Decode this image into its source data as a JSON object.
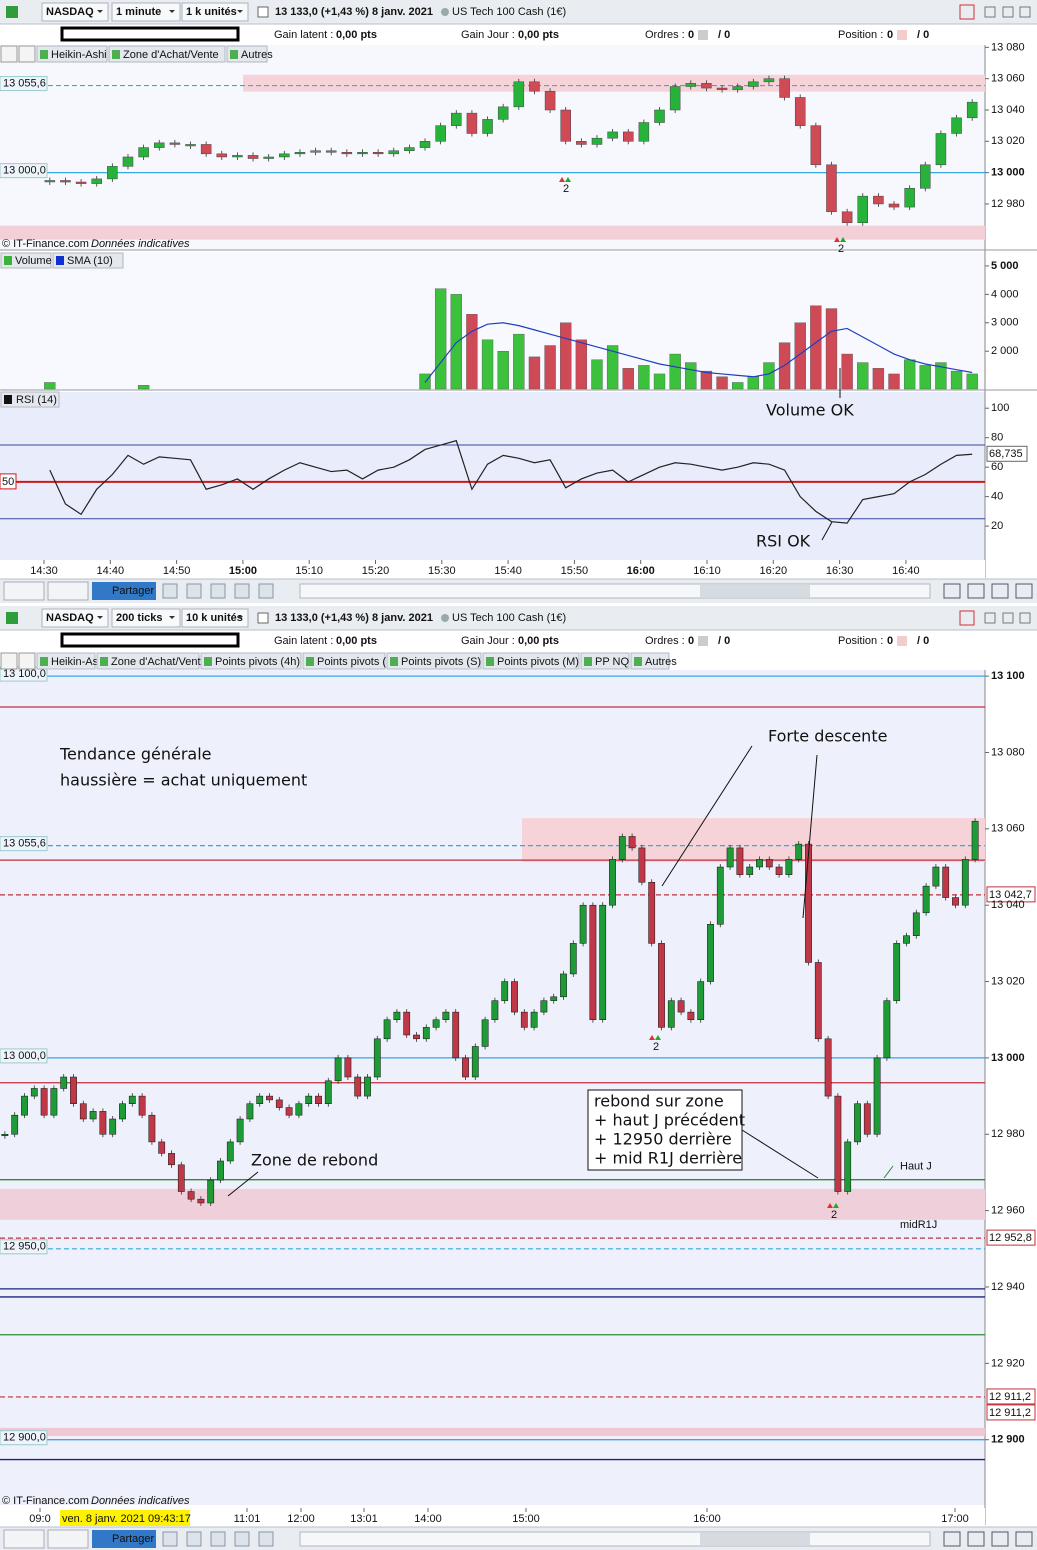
{
  "top_window": {
    "toolbar": {
      "instrument": "NASDAQ",
      "period": "1 minute",
      "units": "1 k unités",
      "quote": "13 133,0 (+1,43 %)",
      "date": "8 janv. 2021",
      "product": "US Tech 100 Cash (1€)"
    },
    "status": {
      "gain_latent": "Gain latent :",
      "gain_latent_value": "0,00 pts",
      "gain_jour": "Gain Jour :",
      "gain_jour_value": "0,00 pts",
      "ordres": "Ordres :",
      "ordres_value": "0",
      "ordres_value2": "/ 0",
      "position": "Position :",
      "position_value": "0",
      "position_value2": "/ 0"
    },
    "tabs": [
      "Heikin-Ashi",
      "Zone d'Achat/Vente",
      "Autres"
    ],
    "price": {
      "ylim": [
        12950.6,
        13081.5
      ],
      "yticks": [
        {
          "value": 13080,
          "label": "13 080"
        },
        {
          "value": 13060,
          "label": "13 060"
        },
        {
          "value": 13040,
          "label": "13 040"
        },
        {
          "value": 13020,
          "label": "13 020"
        },
        {
          "value": 13000,
          "label": "13 000",
          "bold": true
        },
        {
          "value": 12980,
          "label": "12 980"
        }
      ],
      "levels": [
        {
          "value": 13055.6,
          "color": "#3aa7e0",
          "dash": true,
          "label": "13 055,6"
        },
        {
          "value": 13000,
          "color": "#3aa7e0",
          "label": "13 000,0"
        }
      ],
      "zones": [
        {
          "from": 13051.7,
          "to": 13062.5,
          "color": "#f6d3d8"
        },
        {
          "from": 12957.2,
          "to": 12966.2,
          "color": "#f3d0d8"
        }
      ],
      "closes": [
        12995,
        12994,
        12993,
        12996,
        13004,
        13010,
        13016,
        13019,
        13018,
        13018,
        13012,
        13010,
        13011,
        13009,
        13010,
        13012,
        13013,
        13014,
        13013,
        13012,
        13013,
        13012,
        13014,
        13016,
        13020,
        13030,
        13038,
        13025,
        13034,
        13042,
        13058,
        13052,
        13040,
        13020,
        13018,
        13022,
        13026,
        13020,
        13032,
        13040,
        13055,
        13057,
        13054,
        13053,
        13055,
        13058,
        13060,
        13048,
        13030,
        13005,
        12975,
        12968,
        12985,
        12980,
        12978,
        12990,
        13005,
        13025,
        13035,
        13045
      ],
      "signals": [
        "2",
        "2"
      ],
      "copyright": "© IT-Finance.com",
      "copyright_note": "Données indicatives"
    },
    "volume": {
      "tabs": [
        "Volume",
        "SMA (10)"
      ],
      "ylim": [
        670,
        5490
      ],
      "yticks": [
        {
          "value": 5000,
          "label": "5 000",
          "bold": true
        },
        {
          "value": 4000,
          "label": "4 000"
        },
        {
          "value": 3000,
          "label": "3 000"
        },
        {
          "value": 2000,
          "label": "2 000"
        }
      ],
      "values": [
        900,
        null,
        null,
        null,
        null,
        null,
        800,
        null,
        null,
        null,
        null,
        null,
        null,
        null,
        null,
        null,
        null,
        null,
        null,
        null,
        null,
        null,
        null,
        null,
        1200,
        4200,
        4000,
        3300,
        2400,
        2000,
        2600,
        1800,
        2200,
        3000,
        2400,
        1700,
        2200,
        1400,
        1500,
        1200,
        1900,
        1600,
        1300,
        1100,
        900,
        1100,
        1600,
        2300,
        3000,
        3600,
        3500,
        1900,
        1600,
        1400,
        1200,
        1700,
        1500,
        1600,
        1300,
        1200
      ],
      "sma": [
        null,
        null,
        null,
        null,
        null,
        null,
        null,
        null,
        null,
        null,
        null,
        null,
        null,
        null,
        null,
        null,
        null,
        null,
        null,
        null,
        null,
        null,
        null,
        null,
        900,
        1600,
        2300,
        2700,
        2950,
        3000,
        2900,
        2750,
        2600,
        2450,
        2300,
        2150,
        2000,
        1850,
        1700,
        1550,
        1450,
        1350,
        1250,
        1200,
        1150,
        1100,
        1200,
        1500,
        1900,
        2300,
        2700,
        2800,
        2500,
        2200,
        1900,
        1700,
        1550,
        1450,
        1350,
        1250
      ],
      "sma_color": "#1f3fbf"
    },
    "rsi": {
      "tab": "RSI (14)",
      "ylim": [
        -3,
        111
      ],
      "yticks": [
        100,
        80,
        60,
        40,
        20
      ],
      "bands": [
        75,
        25
      ],
      "mid": {
        "value": 50,
        "label": "50"
      },
      "last": {
        "value": 68.735,
        "label": "68,735"
      },
      "values": [
        58,
        35,
        28,
        45,
        55,
        68,
        62,
        67,
        66,
        65,
        45,
        48,
        52,
        45,
        52,
        58,
        63,
        60,
        57,
        58,
        52,
        58,
        60,
        65,
        72,
        75,
        78,
        45,
        62,
        68,
        66,
        63,
        65,
        46,
        52,
        56,
        58,
        50,
        55,
        60,
        63,
        62,
        60,
        58,
        60,
        63,
        62,
        58,
        40,
        30,
        23,
        22,
        38,
        40,
        42,
        50,
        55,
        62,
        68,
        68.735
      ]
    },
    "annotations": [
      "Volume OK",
      "RSI OK"
    ],
    "time_axis": [
      {
        "label": "14:30"
      },
      {
        "label": "14:40"
      },
      {
        "label": "14:50"
      },
      {
        "label": "15:00",
        "bold": true
      },
      {
        "label": "15:10"
      },
      {
        "label": "15:20"
      },
      {
        "label": "15:30"
      },
      {
        "label": "15:40"
      },
      {
        "label": "15:50"
      },
      {
        "label": "16:00",
        "bold": true
      },
      {
        "label": "16:10"
      },
      {
        "label": "16:20"
      },
      {
        "label": "16:30"
      },
      {
        "label": "16:40"
      }
    ],
    "share": "Partager"
  },
  "bottom_window": {
    "toolbar": {
      "instrument": "NASDAQ",
      "period": "200 ticks",
      "units": "10 k unités",
      "quote": "13 133,0 (+1,43 %)",
      "date": "8 janv. 2021",
      "product": "US Tech 100 Cash (1€)"
    },
    "status": {
      "gain_latent": "Gain latent :",
      "gain_latent_value": "0,00 pts",
      "gain_jour": "Gain Jour :",
      "gain_jour_value": "0,00 pts",
      "ordres": "Ordres :",
      "ordres_value": "0",
      "ordres_value2": "/ 0",
      "position": "Position :",
      "position_value": "0",
      "position_value2": "/ 0"
    },
    "tabs": [
      "Heikin-Ashi",
      "Zone d'Achat/Vente",
      "Points pivots (4h)",
      "Points pivots (J)",
      "Points pivots (S)",
      "Points pivots (M)",
      "PP NQ",
      "Autres"
    ],
    "price": {
      "ylim": [
        12882.9,
        13101.6
      ],
      "yticks": [
        {
          "value": 13100,
          "label": "13 100",
          "bold": true
        },
        {
          "value": 13080,
          "label": "13 080"
        },
        {
          "value": 13060,
          "label": "13 060"
        },
        {
          "value": 13040,
          "label": "13 040"
        },
        {
          "value": 13020,
          "label": "13 020"
        },
        {
          "value": 13000,
          "label": "13 000",
          "bold": true
        },
        {
          "value": 12980,
          "label": "12 980"
        },
        {
          "value": 12960,
          "label": "12 960"
        },
        {
          "value": 12940,
          "label": "12 940"
        },
        {
          "value": 12920,
          "label": "12 920"
        },
        {
          "value": 12900,
          "label": "12 900",
          "bold": true
        }
      ],
      "levels": [
        {
          "value": 13100,
          "color": "#3aa7e0",
          "label": "13 100,0"
        },
        {
          "value": 13091.9,
          "color": "#c0303a"
        },
        {
          "value": 13055.6,
          "color": "#3aa7e0",
          "dash": true,
          "label": "13 055,6"
        },
        {
          "value": 13051.8,
          "color": "#c0303a"
        },
        {
          "value": 13042.7,
          "color": "#c0303a",
          "dash": true,
          "axis_labels": [
            "13 042,7"
          ]
        },
        {
          "value": 13000,
          "color": "#3aa7e0",
          "label": "13 000,0"
        },
        {
          "value": 12993.5,
          "color": "#c0303a"
        },
        {
          "value": 12968.1,
          "color": "#2e8b3a",
          "name": "Haut J"
        },
        {
          "value": 12952.8,
          "color": "#c0303a",
          "dash": true,
          "name": "midR1J",
          "axis_labels": [
            "12 952,8"
          ]
        },
        {
          "value": 12950,
          "color": "#3aa7e0",
          "dash": true,
          "label": "12 950,0"
        },
        {
          "value": 12939.5,
          "color": "#1a237e"
        },
        {
          "value": 12937.4,
          "color": "#1a237e"
        },
        {
          "value": 12927.5,
          "color": "#2e8b3a"
        },
        {
          "value": 12911.2,
          "color": "#c0303a",
          "dash": true,
          "axis_labels": [
            "12 911,2",
            "12 911,2"
          ]
        },
        {
          "value": 12900,
          "color": "#3aa7e0",
          "label": "12 900,0"
        },
        {
          "value": 12894.8,
          "color": "#1a237e"
        }
      ],
      "zones": [
        {
          "from": 13051.3,
          "to": 13062.8,
          "color": "#f6d3d8"
        },
        {
          "from": 12957.6,
          "to": 12965.7,
          "color": "#efd0da"
        },
        {
          "from": 12901,
          "to": 12903.1,
          "color": "#efc8d4"
        }
      ],
      "closes": [
        12980,
        12985,
        12990,
        12992,
        12985,
        12992,
        12995,
        12988,
        12984,
        12986,
        12980,
        12984,
        12988,
        12990,
        12985,
        12978,
        12975,
        12972,
        12965,
        12963,
        12962,
        12968,
        12973,
        12978,
        12984,
        12988,
        12990,
        12989,
        12987,
        12985,
        12988,
        12990,
        12988,
        12994,
        13000,
        12995,
        12990,
        12995,
        13005,
        13010,
        13012,
        13006,
        13005,
        13008,
        13010,
        13012,
        13000,
        12995,
        13003,
        13010,
        13015,
        13020,
        13012,
        13008,
        13012,
        13015,
        13016,
        13022,
        13030,
        13040,
        13010,
        13040,
        13052,
        13058,
        13055,
        13046,
        13030,
        13008,
        13015,
        13012,
        13010,
        13020,
        13035,
        13050,
        13055,
        13048,
        13050,
        13052,
        13050,
        13048,
        13052,
        13056,
        13025,
        13005,
        12990,
        12965,
        12978,
        12988,
        12980,
        13000,
        13015,
        13030,
        13032,
        13038,
        13045,
        13050,
        13042,
        13040,
        13052,
        13062
      ],
      "signals": [
        "2",
        "2"
      ],
      "copyright": "© IT-Finance.com",
      "copyright_note": "Données indicatives"
    },
    "annotations": {
      "trend": [
        "Tendance générale",
        "haussière = achat uniquement"
      ],
      "descent": "Forte descente",
      "rebound_zone": "Zone de rebond",
      "box": [
        "rebond sur zone",
        "+ haut J précédent",
        "+ 12950 derrière",
        "+ mid R1J derrière"
      ]
    },
    "time_axis": [
      {
        "label": "09:0"
      },
      {
        "label": "ven. 8 janv. 2021 09:43:17",
        "highlight": true
      },
      {
        "label": "11:01"
      },
      {
        "label": "12:00"
      },
      {
        "label": "13:01"
      },
      {
        "label": "14:00"
      },
      {
        "label": "15:00"
      },
      {
        "label": "16:00"
      },
      {
        "label": "17:00"
      }
    ],
    "share": "Partager"
  }
}
